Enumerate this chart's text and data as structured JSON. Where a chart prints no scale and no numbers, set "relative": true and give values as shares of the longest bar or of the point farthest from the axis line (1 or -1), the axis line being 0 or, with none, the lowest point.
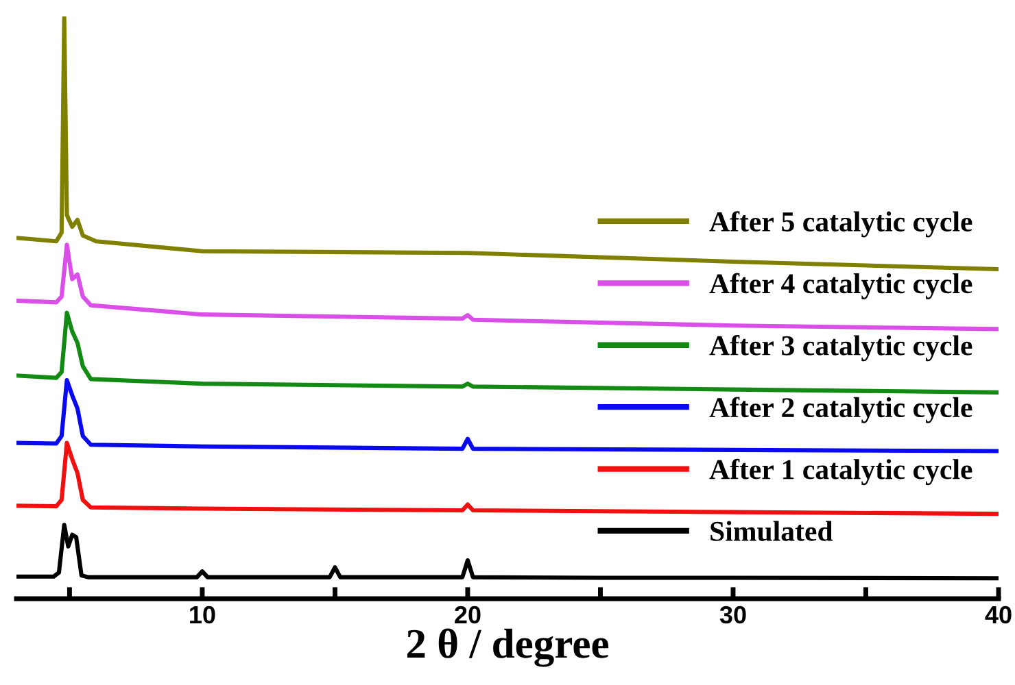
{
  "chart_data": {
    "type": "line",
    "relative": true,
    "xlabel": "2 θ / degree",
    "xlim": [
      3,
      40
    ],
    "xticks": [
      {
        "value": 5,
        "label": null
      },
      10,
      {
        "value": 15,
        "label": null
      },
      20,
      {
        "value": 25,
        "label": null
      },
      30,
      {
        "value": 35,
        "label": null
      },
      40
    ],
    "tick_labels": "x",
    "grid": false,
    "legend": "right",
    "marker": "none",
    "line_style": "solid",
    "series": [
      {
        "name": "After 5 catalytic cycle",
        "color": "#808000",
        "x": [
          3,
          4.5,
          4.7,
          4.8,
          4.9,
          5.1,
          5.3,
          5.5,
          6,
          10,
          20,
          30,
          40
        ],
        "values": [
          0.621,
          0.615,
          0.63,
          1.0,
          0.66,
          0.64,
          0.652,
          0.625,
          0.615,
          0.598,
          0.595,
          0.58,
          0.567
        ]
      },
      {
        "name": "After 4 catalytic cycle",
        "color": "#d94fe8",
        "x": [
          3,
          4.5,
          4.7,
          4.9,
          5.1,
          5.3,
          5.5,
          5.8,
          10,
          19.8,
          20,
          20.2,
          30,
          40
        ],
        "values": [
          0.513,
          0.51,
          0.52,
          0.609,
          0.55,
          0.558,
          0.52,
          0.505,
          0.489,
          0.482,
          0.488,
          0.48,
          0.47,
          0.464
        ]
      },
      {
        "name": "After 3 catalytic cycle",
        "color": "#138a13",
        "x": [
          3,
          4.5,
          4.7,
          4.9,
          5.1,
          5.3,
          5.5,
          5.8,
          10,
          19.8,
          20,
          20.2,
          30,
          40
        ],
        "values": [
          0.384,
          0.38,
          0.39,
          0.492,
          0.46,
          0.44,
          0.4,
          0.378,
          0.37,
          0.365,
          0.37,
          0.365,
          0.36,
          0.355
        ]
      },
      {
        "name": "After 2 catalytic cycle",
        "color": "#0a0af0",
        "x": [
          3,
          4.5,
          4.7,
          4.9,
          5.1,
          5.3,
          5.5,
          5.8,
          10,
          19.8,
          20,
          20.2,
          30,
          40
        ],
        "values": [
          0.268,
          0.267,
          0.28,
          0.376,
          0.35,
          0.327,
          0.28,
          0.265,
          0.262,
          0.258,
          0.275,
          0.258,
          0.256,
          0.254
        ]
      },
      {
        "name": "After 1 catalytic cycle",
        "color": "#f01010",
        "x": [
          3,
          4.5,
          4.7,
          4.9,
          5.1,
          5.3,
          5.5,
          5.8,
          10,
          19.8,
          20,
          20.2,
          30,
          40
        ],
        "values": [
          0.16,
          0.159,
          0.17,
          0.268,
          0.24,
          0.216,
          0.17,
          0.157,
          0.155,
          0.152,
          0.162,
          0.152,
          0.149,
          0.146
        ]
      },
      {
        "name": "Simulated",
        "color": "#000000",
        "x": [
          3,
          4.4,
          4.6,
          4.8,
          4.95,
          5.1,
          5.25,
          5.45,
          5.7,
          9.8,
          10,
          10.2,
          14.8,
          15,
          15.2,
          19.8,
          20,
          20.2,
          25,
          30,
          40
        ],
        "values": [
          0.038,
          0.038,
          0.045,
          0.127,
          0.09,
          0.11,
          0.106,
          0.04,
          0.037,
          0.037,
          0.047,
          0.037,
          0.037,
          0.054,
          0.037,
          0.037,
          0.066,
          0.037,
          0.036,
          0.036,
          0.035
        ]
      }
    ]
  }
}
